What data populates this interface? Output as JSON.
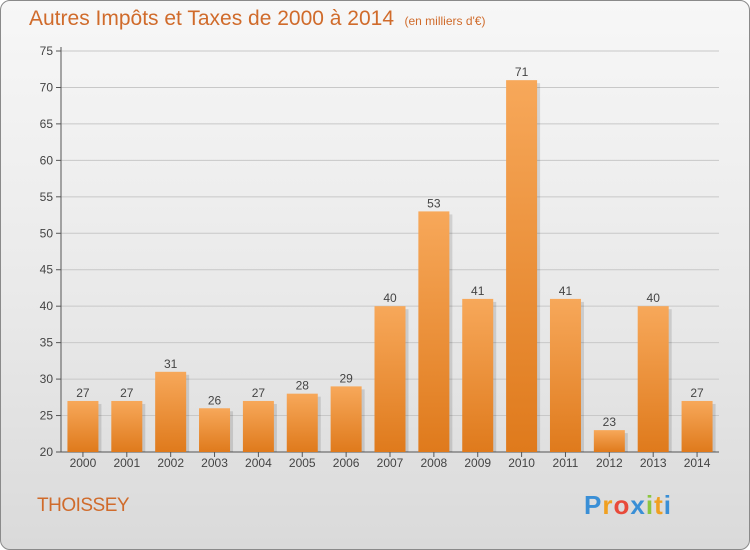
{
  "header": {
    "title": "Autres Impôts et Taxes de 2000 à 2014",
    "subtitle": "(en milliers d'€)"
  },
  "footer": {
    "place": "THOISSEY",
    "logo_letters": [
      "P",
      "r",
      "o",
      "x",
      "i",
      "t",
      "i"
    ],
    "logo_colors": [
      "#3a8fd6",
      "#f0a020",
      "#e84a3a",
      "#3a8fd6",
      "#8cc63f",
      "#f0a020",
      "#3a8fd6"
    ]
  },
  "colors": {
    "accent": "#d06b2b",
    "bar_light": "#f7a85a",
    "bar_dark": "#e07d1f"
  },
  "chart_data": {
    "type": "bar",
    "title": "Autres Impôts et Taxes de 2000 à 2014",
    "subtitle": "(en milliers d'€)",
    "categories": [
      "2000",
      "2001",
      "2002",
      "2003",
      "2004",
      "2005",
      "2006",
      "2007",
      "2008",
      "2009",
      "2010",
      "2011",
      "2012",
      "2013",
      "2014"
    ],
    "values": [
      27,
      27,
      31,
      26,
      27,
      28,
      29,
      40,
      53,
      41,
      71,
      41,
      23,
      40,
      27
    ],
    "ylim": [
      20,
      75
    ],
    "yticks": [
      20,
      25,
      30,
      35,
      40,
      45,
      50,
      55,
      60,
      65,
      70,
      75
    ],
    "grid": true,
    "legend": "none"
  }
}
